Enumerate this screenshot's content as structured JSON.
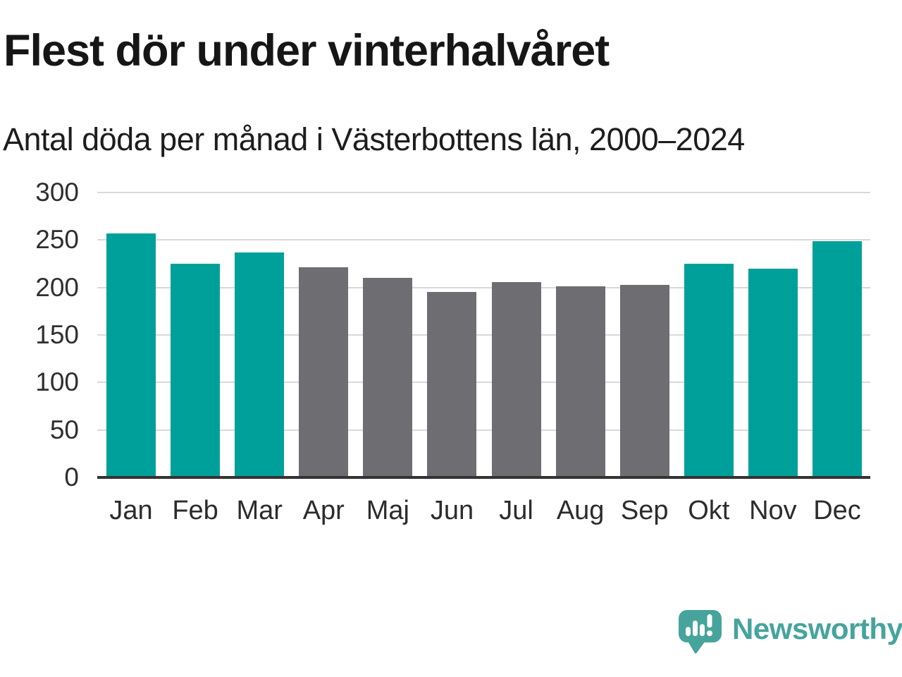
{
  "header": {
    "title": "Flest dör under vinterhalvåret",
    "subtitle": "Antal döda per månad i Västerbottens län, 2000–2024"
  },
  "chart_data": {
    "type": "bar",
    "title": "Flest dör under vinterhalvåret",
    "subtitle": "Antal döda per månad i Västerbottens län, 2000–2024",
    "categories": [
      "Jan",
      "Feb",
      "Mar",
      "Apr",
      "Maj",
      "Jun",
      "Jul",
      "Aug",
      "Sep",
      "Okt",
      "Nov",
      "Dec"
    ],
    "values": [
      257,
      225,
      237,
      221,
      210,
      195,
      206,
      201,
      203,
      225,
      220,
      249
    ],
    "bar_roles": [
      "highlight",
      "highlight",
      "highlight",
      "muted",
      "muted",
      "muted",
      "muted",
      "muted",
      "muted",
      "highlight",
      "highlight",
      "highlight"
    ],
    "xlabel": "",
    "ylabel": "",
    "ylim": [
      0,
      300
    ],
    "yticks": [
      0,
      50,
      100,
      150,
      200,
      250,
      300
    ],
    "grid": true,
    "legend": "none",
    "colors": {
      "highlight": "#00a09a",
      "muted": "#6e6d72",
      "gridline": "#d9d9d9",
      "axis": "#333333",
      "tick_text": "#2f2f2f"
    }
  },
  "branding": {
    "logo_text": "Newsworthy",
    "logo_color": "#46a49d",
    "logo_icon": "bar-chart-speech-bubble-icon"
  }
}
